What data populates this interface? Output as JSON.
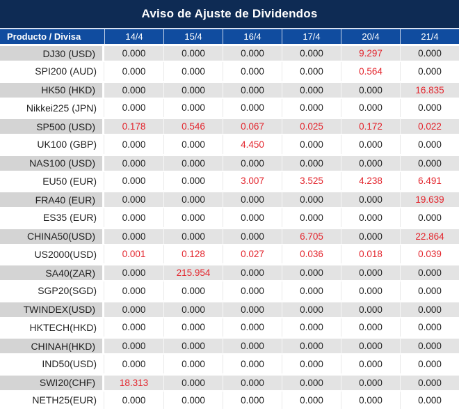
{
  "chart_data": {
    "type": "table",
    "title": "Aviso de Ajuste de Dividendos",
    "header_label": "Producto / Divisa",
    "date_columns": [
      "14/4",
      "15/4",
      "16/4",
      "17/4",
      "20/4",
      "21/4"
    ],
    "rows": [
      {
        "label": "DJ30 (USD)",
        "values": [
          "0.000",
          "0.000",
          "0.000",
          "0.000",
          "9.297",
          "0.000"
        ],
        "red_indices": [
          4
        ]
      },
      {
        "label": "SPI200 (AUD)",
        "values": [
          "0.000",
          "0.000",
          "0.000",
          "0.000",
          "0.564",
          "0.000"
        ],
        "red_indices": [
          4
        ]
      },
      {
        "label": "HK50 (HKD)",
        "values": [
          "0.000",
          "0.000",
          "0.000",
          "0.000",
          "0.000",
          "16.835"
        ],
        "red_indices": [
          5
        ]
      },
      {
        "label": "Nikkei225 (JPN)",
        "values": [
          "0.000",
          "0.000",
          "0.000",
          "0.000",
          "0.000",
          "0.000"
        ],
        "red_indices": []
      },
      {
        "label": "SP500 (USD)",
        "values": [
          "0.178",
          "0.546",
          "0.067",
          "0.025",
          "0.172",
          "0.022"
        ],
        "red_indices": [
          0,
          1,
          2,
          3,
          4,
          5
        ]
      },
      {
        "label": "UK100 (GBP)",
        "values": [
          "0.000",
          "0.000",
          "4.450",
          "0.000",
          "0.000",
          "0.000"
        ],
        "red_indices": [
          2
        ]
      },
      {
        "label": "NAS100 (USD)",
        "values": [
          "0.000",
          "0.000",
          "0.000",
          "0.000",
          "0.000",
          "0.000"
        ],
        "red_indices": []
      },
      {
        "label": "EU50 (EUR)",
        "values": [
          "0.000",
          "0.000",
          "3.007",
          "3.525",
          "4.238",
          "6.491"
        ],
        "red_indices": [
          2,
          3,
          4,
          5
        ]
      },
      {
        "label": "FRA40 (EUR)",
        "values": [
          "0.000",
          "0.000",
          "0.000",
          "0.000",
          "0.000",
          "19.639"
        ],
        "red_indices": [
          5
        ]
      },
      {
        "label": "ES35 (EUR)",
        "values": [
          "0.000",
          "0.000",
          "0.000",
          "0.000",
          "0.000",
          "0.000"
        ],
        "red_indices": []
      },
      {
        "label": "CHINA50(USD)",
        "values": [
          "0.000",
          "0.000",
          "0.000",
          "6.705",
          "0.000",
          "22.864"
        ],
        "red_indices": [
          3,
          5
        ]
      },
      {
        "label": "US2000(USD)",
        "values": [
          "0.001",
          "0.128",
          "0.027",
          "0.036",
          "0.018",
          "0.039"
        ],
        "red_indices": [
          0,
          1,
          2,
          3,
          4,
          5
        ]
      },
      {
        "label": "SA40(ZAR)",
        "values": [
          "0.000",
          "215.954",
          "0.000",
          "0.000",
          "0.000",
          "0.000"
        ],
        "red_indices": [
          1
        ]
      },
      {
        "label": "SGP20(SGD)",
        "values": [
          "0.000",
          "0.000",
          "0.000",
          "0.000",
          "0.000",
          "0.000"
        ],
        "red_indices": []
      },
      {
        "label": "TWINDEX(USD)",
        "values": [
          "0.000",
          "0.000",
          "0.000",
          "0.000",
          "0.000",
          "0.000"
        ],
        "red_indices": []
      },
      {
        "label": "HKTECH(HKD)",
        "values": [
          "0.000",
          "0.000",
          "0.000",
          "0.000",
          "0.000",
          "0.000"
        ],
        "red_indices": []
      },
      {
        "label": "CHINAH(HKD)",
        "values": [
          "0.000",
          "0.000",
          "0.000",
          "0.000",
          "0.000",
          "0.000"
        ],
        "red_indices": []
      },
      {
        "label": "IND50(USD)",
        "values": [
          "0.000",
          "0.000",
          "0.000",
          "0.000",
          "0.000",
          "0.000"
        ],
        "red_indices": []
      },
      {
        "label": "SWI20(CHF)",
        "values": [
          "18.313",
          "0.000",
          "0.000",
          "0.000",
          "0.000",
          "0.000"
        ],
        "red_indices": [
          0
        ]
      },
      {
        "label": "NETH25(EUR)",
        "values": [
          "0.000",
          "0.000",
          "0.000",
          "0.000",
          "0.000",
          "0.000"
        ],
        "red_indices": []
      }
    ],
    "layout_hints": {
      "striped_rows": "odd rows gray, even rows white",
      "red_meaning": "non-zero dividend adjustment values highlighted in red"
    }
  },
  "colors": {
    "title_bar": "#0e2b54",
    "header_row": "#104c9f",
    "stripe_label_cell": "#d4d4d4",
    "stripe_data_cell": "#e3e3e3",
    "negative_value_red": "#e3242c",
    "body_text": "#1f1f1f"
  }
}
